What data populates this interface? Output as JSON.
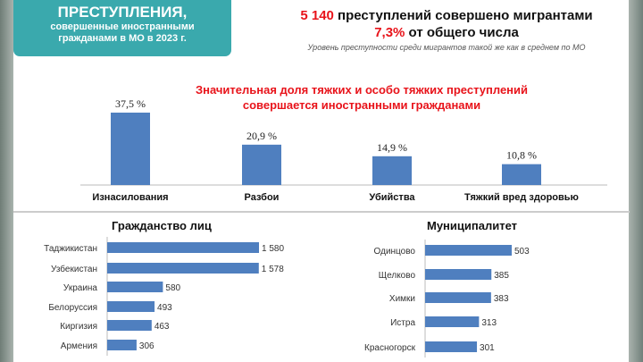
{
  "header": {
    "box_title": "ПРЕСТУПЛЕНИЯ,",
    "box_sub1": "совершенные иностранными",
    "box_sub2": "гражданами в МО в 2023 г.",
    "count": "5 140",
    "count_text": " преступлений совершено мигрантами",
    "share": "7,3%",
    "share_text": " от общего числа",
    "subtitle": "Уровень преступности среди мигрантов такой же как в среднем по МО",
    "note1": "Значительная доля тяжких и особо тяжких преступлений",
    "note2": "совершается иностранными гражданами"
  },
  "colors": {
    "bar": "#4f7fbf",
    "teal": "#3aa9ad",
    "accent": "#e8131a"
  },
  "chart_data": [
    {
      "type": "bar",
      "title": "",
      "categories": [
        "Изнасилования",
        "Разбои",
        "Убийства",
        "Тяжкий вред здоровью"
      ],
      "values": [
        37.5,
        20.9,
        14.9,
        10.8
      ],
      "labels": [
        "37,5 %",
        "20,9 %",
        "14,9 %",
        "10,8 %"
      ],
      "ylim": [
        0,
        40
      ]
    },
    {
      "type": "bar",
      "orientation": "horizontal",
      "title": "Гражданство лиц",
      "categories": [
        "Таджикистан",
        "Узбекистан",
        "Украина",
        "Белоруссия",
        "Киргизия",
        "Армения"
      ],
      "values": [
        1580,
        1578,
        580,
        493,
        463,
        306
      ],
      "labels": [
        "1 580",
        "1 578",
        "580",
        "493",
        "463",
        "306"
      ]
    },
    {
      "type": "bar",
      "orientation": "horizontal",
      "title": "Муниципалитет",
      "categories": [
        "Одинцово",
        "Щелково",
        "Химки",
        "Истра",
        "Красногорск"
      ],
      "values": [
        503,
        385,
        383,
        313,
        301
      ],
      "labels": [
        "503",
        "385",
        "383",
        "313",
        "301"
      ]
    }
  ]
}
